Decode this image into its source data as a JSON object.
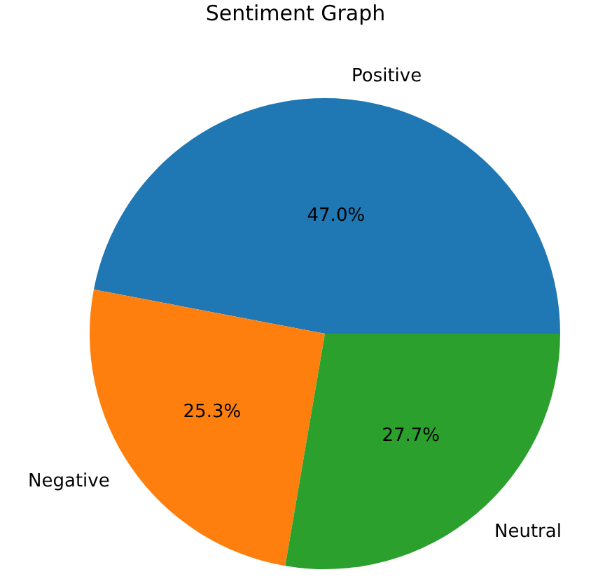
{
  "chart_data": {
    "type": "pie",
    "title": "Sentiment Graph",
    "categories": [
      "Positive",
      "Negative",
      "Neutral"
    ],
    "values": [
      47.0,
      25.3,
      27.7
    ],
    "value_labels": [
      "47.0%",
      "25.3%",
      "27.7%"
    ],
    "colors": [
      "#1f77b4",
      "#ff7f0e",
      "#2ca02c"
    ],
    "legend": false
  }
}
